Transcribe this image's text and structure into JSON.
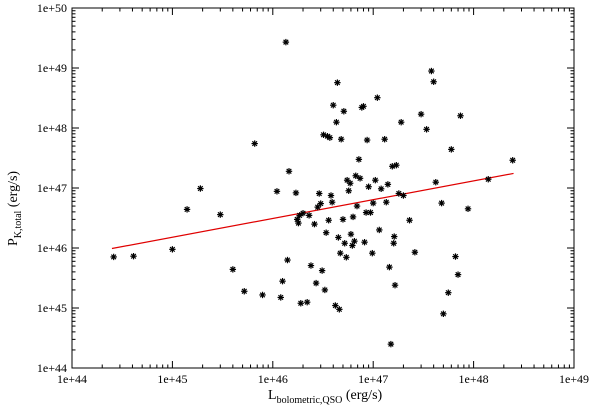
{
  "chart_data": {
    "type": "scatter",
    "x_scale": "log",
    "y_scale": "log",
    "xlim": [
      1e+44,
      1e+49
    ],
    "ylim": [
      1e+44,
      1e+50
    ],
    "x_ticks": [
      "1e+44",
      "1e+45",
      "1e+46",
      "1e+47",
      "1e+48",
      "1e+49"
    ],
    "y_ticks": [
      "1e+44",
      "1e+45",
      "1e+46",
      "1e+47",
      "1e+48",
      "1e+49",
      "1e+50"
    ],
    "xlabel": {
      "main": "L",
      "sub": "bolometric,QSO",
      "unit": " (erg/s)"
    },
    "ylabel": {
      "main": "P",
      "sub": "K,total",
      "unit": " (erg/s)"
    },
    "grid": false,
    "marker": "asterisk",
    "marker_color": "#000000",
    "fit_color": "#e00000",
    "series": [
      {
        "points": [
          [
            2.6e+44,
            7.1e+45
          ],
          [
            4.1e+44,
            7.3e+45
          ],
          [
            1e+45,
            9.5e+45
          ],
          [
            1.4e+45,
            4.4e+46
          ],
          [
            1.9e+45,
            9.8e+46
          ],
          [
            3e+45,
            3.6e+46
          ],
          [
            4e+45,
            4.4e+45
          ],
          [
            5.2e+45,
            1.9e+45
          ],
          [
            6.6e+45,
            5.5e+47
          ],
          [
            7.9e+45,
            1.65e+45
          ],
          [
            1.1e+46,
            8.8e+46
          ],
          [
            1.2e+46,
            1.5e+45
          ],
          [
            1.25e+46,
            2.8e+45
          ],
          [
            1.35e+46,
            2.7e+49
          ],
          [
            1.4e+46,
            6.3e+45
          ],
          [
            1.45e+46,
            1.9e+47
          ],
          [
            1.7e+46,
            8.3e+46
          ],
          [
            1.75e+46,
            3e+46
          ],
          [
            1.8e+46,
            2.6e+46
          ],
          [
            1.85e+46,
            3.5e+46
          ],
          [
            1.9e+46,
            1.2e+45
          ],
          [
            2e+46,
            3.8e+46
          ],
          [
            2.2e+46,
            1.25e+45
          ],
          [
            2.3e+46,
            3.5e+46
          ],
          [
            2.4e+46,
            5.1e+45
          ],
          [
            2.6e+46,
            2.5e+46
          ],
          [
            2.7e+46,
            2.6e+45
          ],
          [
            2.8e+46,
            4.8e+46
          ],
          [
            2.9e+46,
            8.1e+46
          ],
          [
            3e+46,
            5.5e+46
          ],
          [
            3.1e+46,
            4.2e+45
          ],
          [
            3.2e+46,
            7.7e+47
          ],
          [
            3.3e+46,
            2e+45
          ],
          [
            3.4e+46,
            1.8e+46
          ],
          [
            3.5e+46,
            7.3e+47
          ],
          [
            3.6e+46,
            2.9e+46
          ],
          [
            3.7e+46,
            6.9e+47
          ],
          [
            3.8e+46,
            7.5e+46
          ],
          [
            3.9e+46,
            5.8e+46
          ],
          [
            4e+46,
            2.4e+48
          ],
          [
            4.2e+46,
            1.1e+45
          ],
          [
            4.3e+46,
            1.25e+48
          ],
          [
            4.4e+46,
            5.7e+48
          ],
          [
            4.5e+46,
            1.5e+46
          ],
          [
            4.6e+46,
            9.5e+44
          ],
          [
            4.7e+46,
            8.2e+45
          ],
          [
            4.8e+46,
            6.5e+47
          ],
          [
            5e+46,
            3e+46
          ],
          [
            5.1e+46,
            1.9e+48
          ],
          [
            5.2e+46,
            1.2e+46
          ],
          [
            5.4e+46,
            7e+45
          ],
          [
            5.5e+46,
            1.35e+47
          ],
          [
            5.7e+46,
            9e+46
          ],
          [
            5.9e+46,
            1.2e+47
          ],
          [
            6e+46,
            1.7e+46
          ],
          [
            6.2e+46,
            1.1e+46
          ],
          [
            6.3e+46,
            3.3e+46
          ],
          [
            6.5e+46,
            1.3e+46
          ],
          [
            6.7e+46,
            1.6e+47
          ],
          [
            6.9e+46,
            5e+46
          ],
          [
            7.2e+46,
            3e+47
          ],
          [
            7.4e+46,
            1.45e+47
          ],
          [
            7.7e+46,
            2.2e+48
          ],
          [
            8e+46,
            2.3e+48
          ],
          [
            8.2e+46,
            1.25e+46
          ],
          [
            8.5e+46,
            3.9e+46
          ],
          [
            8.7e+46,
            6.3e+47
          ],
          [
            9e+46,
            1.05e+47
          ],
          [
            9.4e+46,
            3.9e+46
          ],
          [
            9.8e+46,
            8.2e+45
          ],
          [
            1e+47,
            5.6e+46
          ],
          [
            1.05e+47,
            1.35e+47
          ],
          [
            1.1e+47,
            3.2e+48
          ],
          [
            1.15e+47,
            2e+46
          ],
          [
            1.2e+47,
            9.7e+46
          ],
          [
            1.3e+47,
            6.5e+47
          ],
          [
            1.35e+47,
            5.8e+46
          ],
          [
            1.4e+47,
            1.15e+47
          ],
          [
            1.45e+47,
            4.8e+45
          ],
          [
            1.5e+47,
            2.5e+44
          ],
          [
            1.55e+47,
            2.3e+47
          ],
          [
            1.6e+47,
            1.2e+46
          ],
          [
            1.62e+47,
            1.55e+46
          ],
          [
            1.65e+47,
            2.4e+45
          ],
          [
            1.7e+47,
            2.4e+47
          ],
          [
            1.8e+47,
            8.1e+46
          ],
          [
            1.9e+47,
            1.25e+48
          ],
          [
            2e+47,
            7.5e+46
          ],
          [
            2.3e+47,
            2.9e+46
          ],
          [
            2.6e+47,
            8.5e+45
          ],
          [
            3e+47,
            1.7e+48
          ],
          [
            3.4e+47,
            9.5e+47
          ],
          [
            3.8e+47,
            8.9e+48
          ],
          [
            4e+47,
            5.9e+48
          ],
          [
            4.2e+47,
            1.25e+47
          ],
          [
            4.8e+47,
            5.6e+46
          ],
          [
            5e+47,
            8e+44
          ],
          [
            5.6e+47,
            1.8e+45
          ],
          [
            6e+47,
            4.4e+47
          ],
          [
            6.6e+47,
            7.2e+45
          ],
          [
            7e+47,
            3.6e+45
          ],
          [
            7.4e+47,
            1.6e+48
          ],
          [
            8.8e+47,
            4.5e+46
          ],
          [
            1.4e+48,
            1.4e+47
          ],
          [
            2.45e+48,
            2.9e+47
          ]
        ]
      },
      {
        "type": "line",
        "points": [
          [
            2.5e+44,
            9.8e+45
          ],
          [
            2.5e+48,
            1.75e+47
          ]
        ]
      }
    ]
  }
}
